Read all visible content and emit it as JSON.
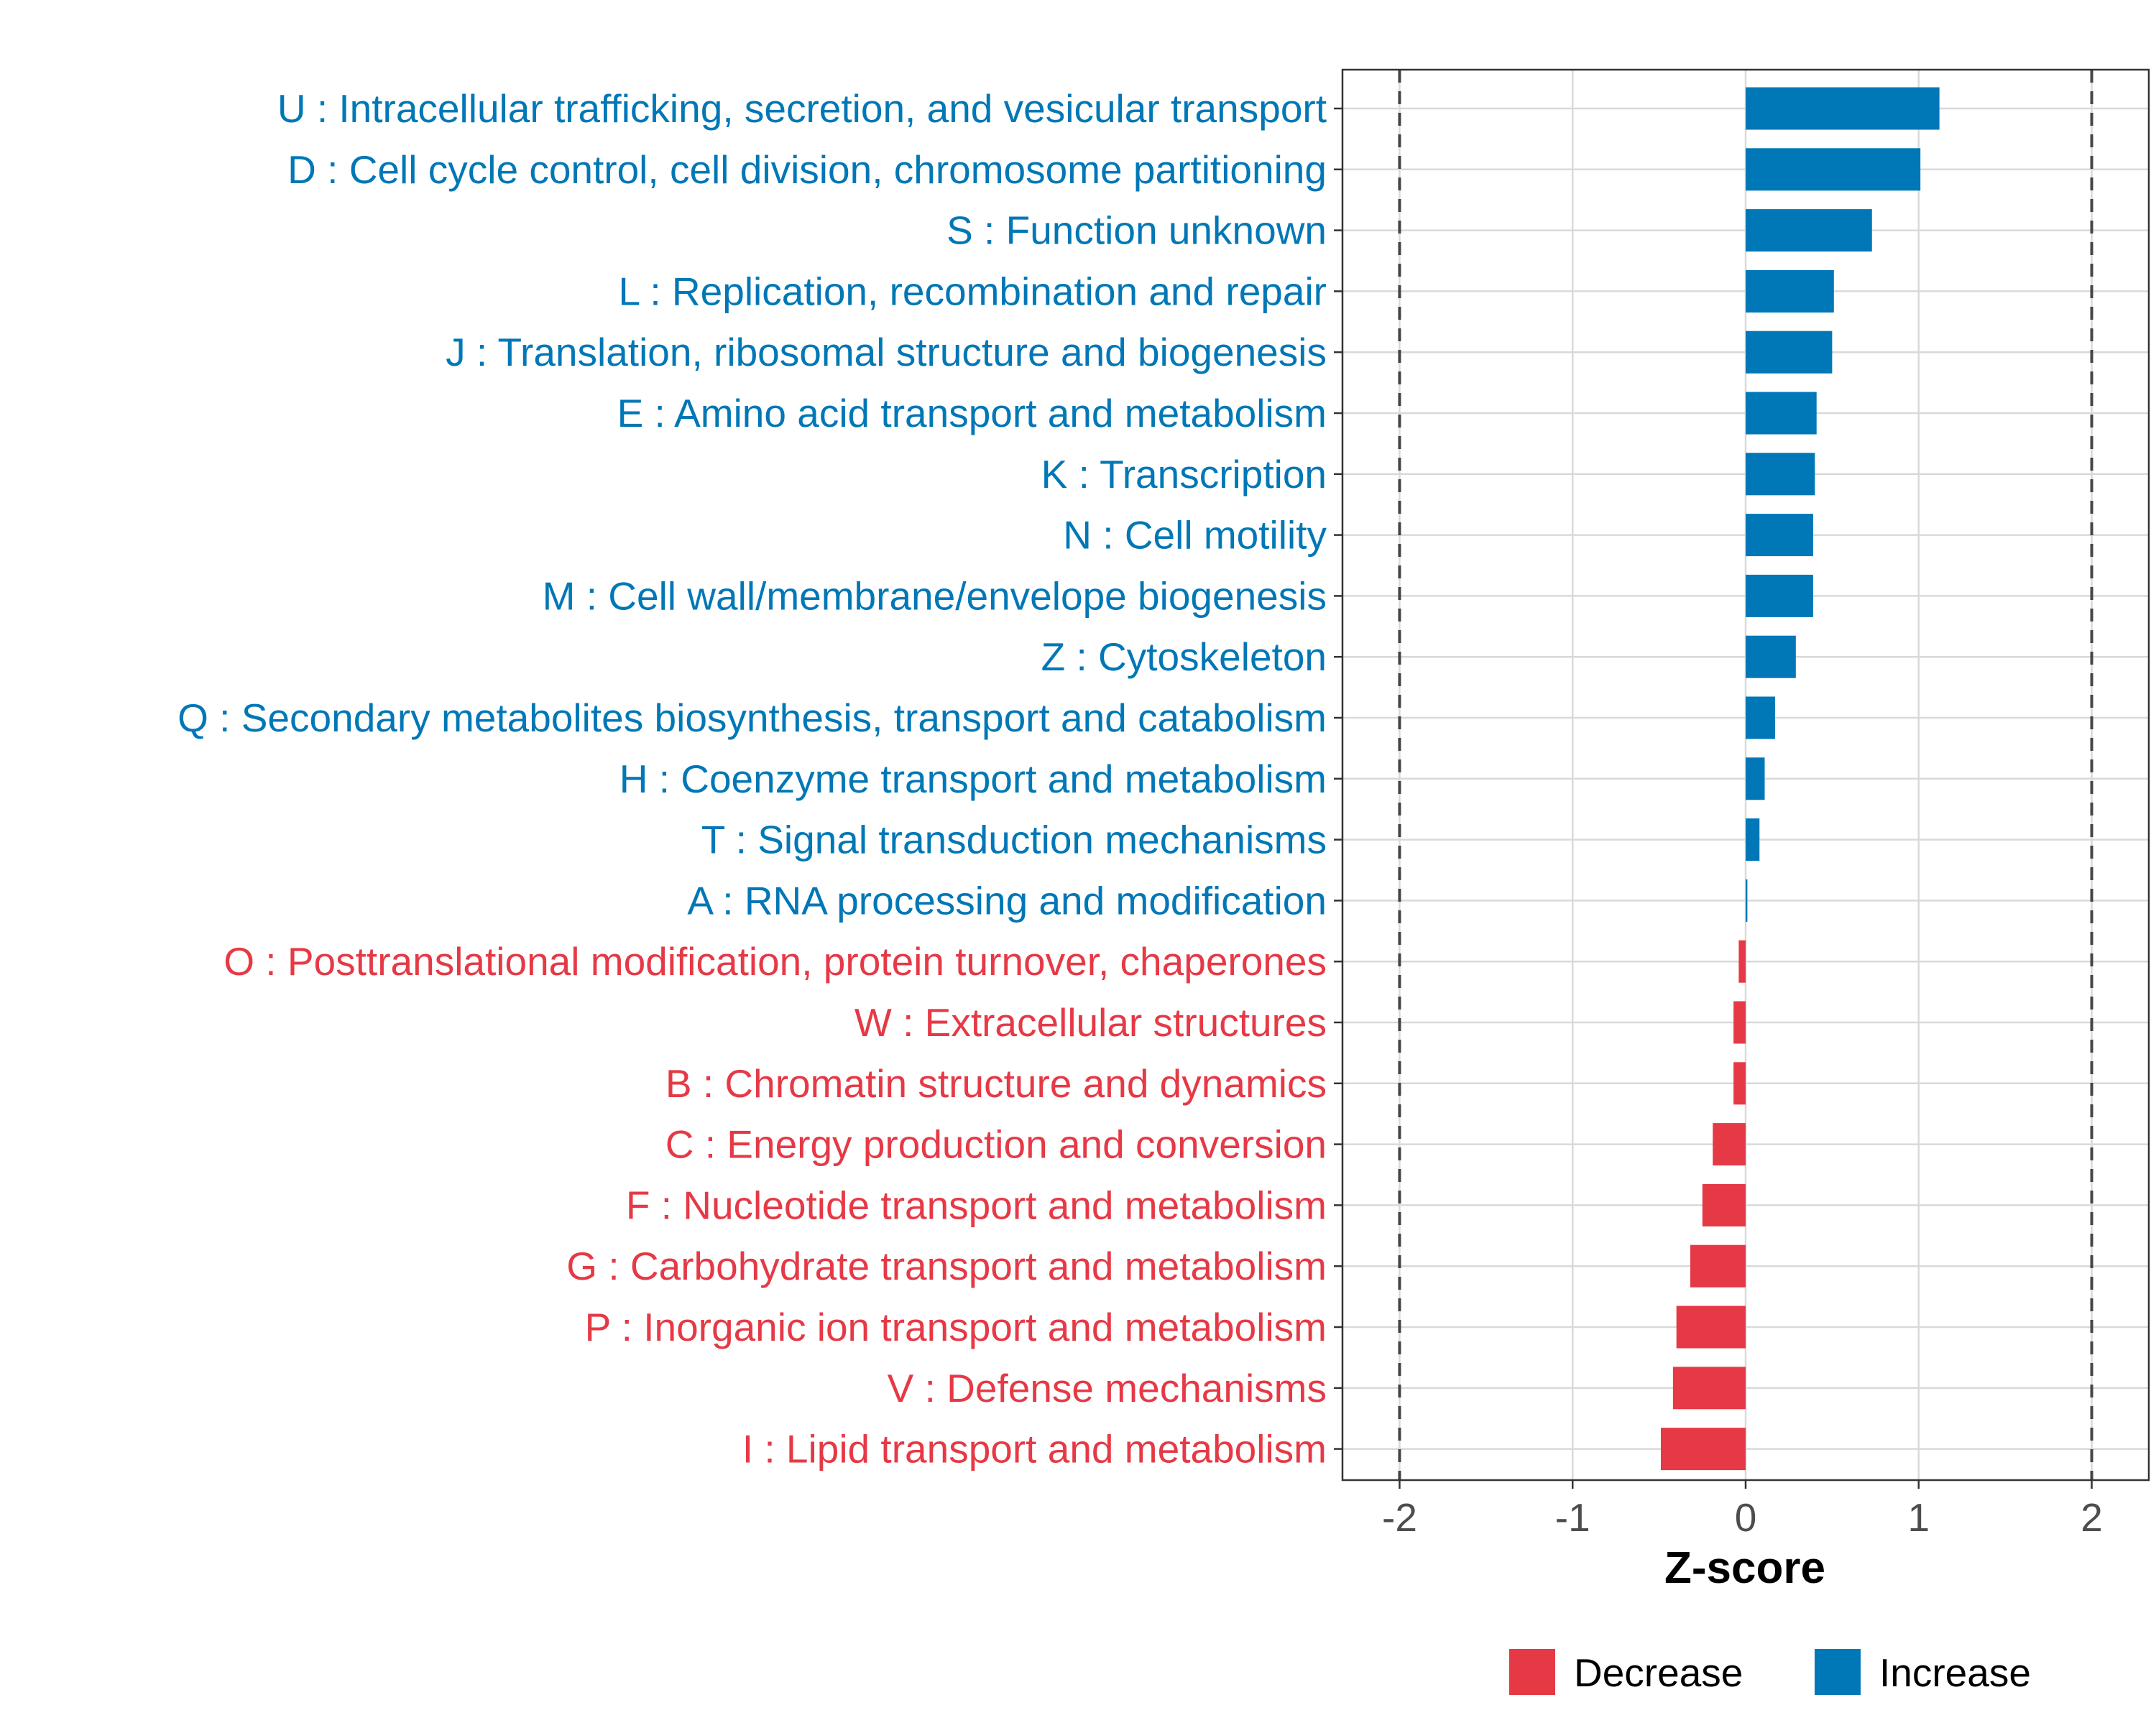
{
  "chart_data": {
    "type": "bar",
    "orientation": "horizontal",
    "title": "",
    "xlabel": "Z-score",
    "ylabel": "",
    "xlim": [
      -2.33,
      2.33
    ],
    "xticks": [
      -2,
      -1,
      0,
      1,
      2
    ],
    "xtick_labels": [
      "-2",
      "-1",
      "0",
      "1",
      "2"
    ],
    "reference_lines": [
      -2,
      2
    ],
    "grid": true,
    "legend": {
      "placement": "bottom",
      "entries": [
        {
          "label": "Decrease",
          "color": "#E63946"
        },
        {
          "label": "Increase",
          "color": "#0077B6"
        }
      ]
    },
    "colors": {
      "Increase": "#0077B6",
      "Decrease": "#E63946"
    },
    "bars": [
      {
        "category": "U : Intracellular trafficking, secretion, and vesicular transport",
        "value": 1.12,
        "group": "Increase"
      },
      {
        "category": "D : Cell cycle control, cell division, chromosome partitioning",
        "value": 1.01,
        "group": "Increase"
      },
      {
        "category": "S : Function unknown",
        "value": 0.73,
        "group": "Increase"
      },
      {
        "category": "L : Replication, recombination and repair",
        "value": 0.51,
        "group": "Increase"
      },
      {
        "category": "J : Translation, ribosomal structure and biogenesis",
        "value": 0.5,
        "group": "Increase"
      },
      {
        "category": "E : Amino acid transport and metabolism",
        "value": 0.41,
        "group": "Increase"
      },
      {
        "category": "K : Transcription",
        "value": 0.4,
        "group": "Increase"
      },
      {
        "category": "N : Cell motility",
        "value": 0.39,
        "group": "Increase"
      },
      {
        "category": "M : Cell wall/membrane/envelope biogenesis",
        "value": 0.39,
        "group": "Increase"
      },
      {
        "category": "Z : Cytoskeleton",
        "value": 0.29,
        "group": "Increase"
      },
      {
        "category": "Q : Secondary metabolites biosynthesis, transport and catabolism",
        "value": 0.17,
        "group": "Increase"
      },
      {
        "category": "H : Coenzyme transport and metabolism",
        "value": 0.11,
        "group": "Increase"
      },
      {
        "category": "T : Signal transduction mechanisms",
        "value": 0.08,
        "group": "Increase"
      },
      {
        "category": "A : RNA processing and modification",
        "value": 0.01,
        "group": "Increase"
      },
      {
        "category": "O : Posttranslational modification, protein turnover, chaperones",
        "value": -0.04,
        "group": "Decrease"
      },
      {
        "category": "W : Extracellular structures",
        "value": -0.07,
        "group": "Decrease"
      },
      {
        "category": "B : Chromatin structure and dynamics",
        "value": -0.07,
        "group": "Decrease"
      },
      {
        "category": "C : Energy production and conversion",
        "value": -0.19,
        "group": "Decrease"
      },
      {
        "category": "F : Nucleotide transport and metabolism",
        "value": -0.25,
        "group": "Decrease"
      },
      {
        "category": "G : Carbohydrate transport and metabolism",
        "value": -0.32,
        "group": "Decrease"
      },
      {
        "category": "P : Inorganic ion transport and metabolism",
        "value": -0.4,
        "group": "Decrease"
      },
      {
        "category": "V : Defense mechanisms",
        "value": -0.42,
        "group": "Decrease"
      },
      {
        "category": "I : Lipid transport and metabolism",
        "value": -0.49,
        "group": "Decrease"
      }
    ]
  }
}
